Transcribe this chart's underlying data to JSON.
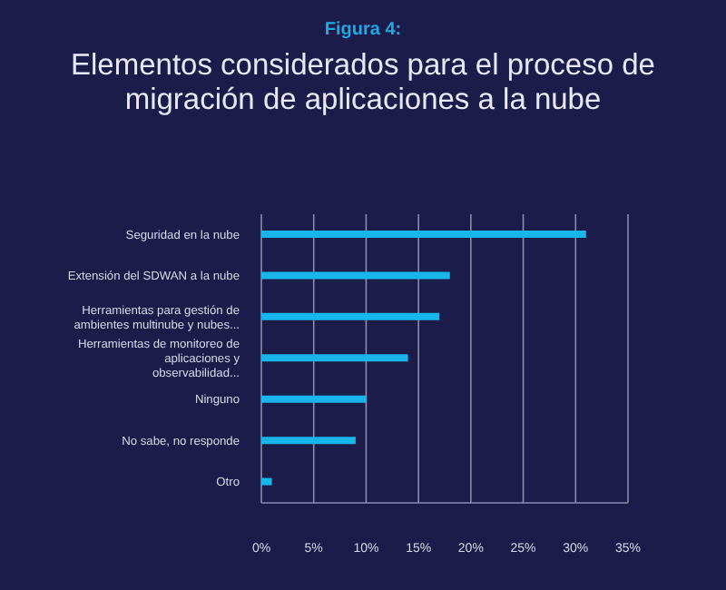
{
  "chart_data": {
    "type": "bar",
    "orientation": "horizontal",
    "title": "Elementos considerados para el proceso de migración de aplicaciones a la nube",
    "subtitle": "Figura 4:",
    "categories": [
      "Seguridad en la nube",
      "Extensión del SDWAN a la nube",
      "Herramientas para gestión de ambientes multinube y nubes...",
      "Herramientas de monitoreo de aplicaciones y observabilidad...",
      "Ninguno",
      "No sabe, no responde",
      "Otro"
    ],
    "values": [
      31,
      18,
      17,
      14,
      10,
      9,
      1
    ],
    "color": "#19b6ec",
    "xlim": [
      0,
      35
    ],
    "xticks": [
      {
        "value": 0,
        "label": "0%"
      },
      {
        "value": 5,
        "label": "5%"
      },
      {
        "value": 10,
        "label": "10%"
      },
      {
        "value": 15,
        "label": "15%"
      },
      {
        "value": 20,
        "label": "20%"
      },
      {
        "value": 25,
        "label": "25%"
      },
      {
        "value": 30,
        "label": "30%"
      },
      {
        "value": 35,
        "label": "35%"
      }
    ],
    "grid": "x",
    "legend": false
  }
}
